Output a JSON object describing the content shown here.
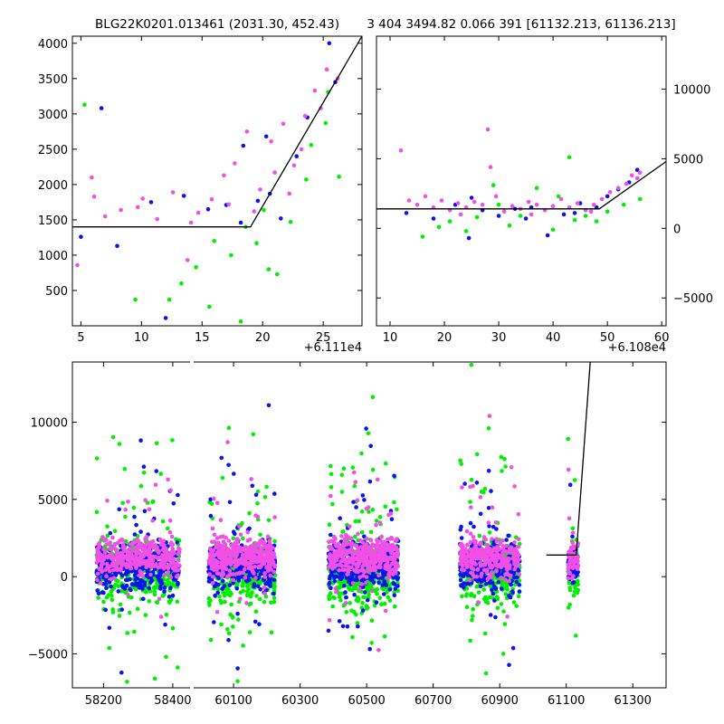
{
  "chart_data": [
    {
      "name": "top-left",
      "type": "scatter",
      "title": "BLG22K0201.013461 (2031.30, 452.43)",
      "x_offset_label": "+6.111e4",
      "xlim": [
        4.3,
        28.2
      ],
      "ylim": [
        0,
        4100
      ],
      "xticks": [
        5,
        10,
        15,
        20,
        25
      ],
      "xtick_labels": [
        "5",
        "10",
        "15",
        "20",
        "25"
      ],
      "yticks": [
        500,
        1000,
        1500,
        2000,
        2500,
        3000,
        3500,
        4000
      ],
      "ytick_labels": [
        "500",
        "1000",
        "1500",
        "2000",
        "2500",
        "3000",
        "3500",
        "4000"
      ],
      "y_axis_side": "left",
      "model_line": {
        "x": [
          4.3,
          19.0,
          28.2
        ],
        "y": [
          1400,
          1400,
          4100
        ]
      },
      "series": [
        {
          "name": "blue",
          "color": "#0a14f0",
          "x": [
            5,
            6.7,
            8,
            10.8,
            12,
            15.5,
            17,
            18.4,
            19.6,
            20.3,
            21.5,
            22.8,
            25.5,
            26,
            13.5,
            18.2,
            20.6,
            23.7
          ],
          "y": [
            1260,
            3080,
            1130,
            1750,
            110,
            1650,
            1710,
            2550,
            1770,
            2680,
            1520,
            2400,
            4000,
            3450,
            1840,
            1460,
            1870,
            2950
          ]
        },
        {
          "name": "green",
          "color": "#00f000",
          "x": [
            5.3,
            9.5,
            12.3,
            13.3,
            14.5,
            15.6,
            16,
            17.4,
            18.2,
            19.5,
            20.5,
            21.2,
            22.3,
            24,
            25.2,
            26.3,
            18.6,
            20.1,
            23.6,
            25.4
          ],
          "y": [
            3130,
            370,
            370,
            600,
            830,
            270,
            1200,
            1000,
            60,
            1170,
            800,
            730,
            1470,
            2560,
            2870,
            2110,
            1400,
            1640,
            2070,
            3310
          ]
        },
        {
          "name": "magenta",
          "color": "#f050e6",
          "x": [
            4.7,
            5.9,
            7,
            8.3,
            9.7,
            11.3,
            12.6,
            13.8,
            14.7,
            15.8,
            16.8,
            17.7,
            18.7,
            19.8,
            20.7,
            21.7,
            22.6,
            23.5,
            24.3,
            25.3,
            26.2,
            6.1,
            10.1,
            14.1,
            17.2,
            19.3,
            21,
            22.2,
            23.2,
            24.8
          ],
          "y": [
            860,
            2100,
            1550,
            1640,
            1680,
            1510,
            1890,
            930,
            1600,
            1790,
            2130,
            2300,
            2750,
            1930,
            2610,
            2860,
            2270,
            2970,
            3330,
            3630,
            3500,
            1830,
            1800,
            1460,
            1720,
            1620,
            2170,
            1870,
            2500,
            3080
          ]
        }
      ]
    },
    {
      "name": "top-right",
      "type": "scatter",
      "title": "3 404 3494.82 0.066 391 [61132.213, 61136.213]",
      "x_offset_label": "+6.108e4",
      "xlim": [
        7.5,
        60.8
      ],
      "ylim": [
        -7000,
        13800
      ],
      "xticks": [
        10,
        20,
        30,
        40,
        50,
        60
      ],
      "xtick_labels": [
        "10",
        "20",
        "30",
        "40",
        "50",
        "60"
      ],
      "yticks": [
        -5000,
        0,
        5000,
        10000
      ],
      "ytick_labels": [
        "−5000",
        "0",
        "5000",
        "10000"
      ],
      "y_axis_side": "right",
      "model_line": {
        "x": [
          7.5,
          48.5,
          60.8
        ],
        "y": [
          1400,
          1400,
          4800
        ]
      },
      "series": [
        {
          "name": "blue",
          "color": "#0a14f0",
          "x": [
            13,
            18,
            22,
            24.5,
            27,
            30,
            33,
            36,
            39,
            42,
            45,
            48,
            50,
            52,
            54,
            55.5,
            25,
            35,
            44
          ],
          "y": [
            1100,
            700,
            1700,
            -700,
            1300,
            900,
            1400,
            1500,
            -500,
            1000,
            1800,
            1500,
            2300,
            2800,
            3300,
            4200,
            2200,
            700,
            1100
          ]
        },
        {
          "name": "green",
          "color": "#00f000",
          "x": [
            16,
            19,
            21,
            24,
            26,
            29,
            32,
            34,
            37,
            40,
            43,
            44,
            46,
            48,
            50,
            53,
            56,
            30,
            41
          ],
          "y": [
            -600,
            100,
            500,
            -200,
            800,
            3100,
            200,
            900,
            2900,
            -100,
            5100,
            600,
            900,
            500,
            1200,
            1700,
            2100,
            1700,
            2300
          ]
        },
        {
          "name": "magenta",
          "color": "#f050e6",
          "x": [
            12,
            13.5,
            15,
            16.5,
            18,
            19.5,
            21,
            22.5,
            24,
            25.5,
            27,
            28,
            29.5,
            31,
            32.5,
            34,
            35.5,
            37,
            38.5,
            40,
            41.5,
            43,
            44.5,
            46,
            47.5,
            49,
            50.5,
            52,
            53.5,
            54.5,
            55.5,
            56,
            28.5,
            23,
            36,
            47
          ],
          "y": [
            5600,
            2000,
            1700,
            2300,
            1500,
            2000,
            1300,
            1800,
            1500,
            1900,
            1700,
            7100,
            2300,
            1200,
            1600,
            1400,
            1900,
            1700,
            1300,
            1600,
            2100,
            1500,
            1800,
            1300,
            1700,
            2100,
            2600,
            2900,
            3200,
            3800,
            3600,
            4000,
            4400,
            1000,
            1000,
            1200
          ]
        }
      ]
    },
    {
      "name": "bottom",
      "type": "scatter",
      "title": "",
      "broken_x_axis": true,
      "segments": [
        {
          "xlim": [
            58110,
            58450
          ],
          "xticks": [
            58200,
            58400
          ],
          "xtick_labels": [
            "58200",
            "58400"
          ],
          "seasons": [
            [
              58180,
              58420,
              370
            ]
          ]
        },
        {
          "xlim": [
            59980,
            61400
          ],
          "xticks": [
            60100,
            60300,
            60500,
            60700,
            60900,
            61100,
            61300
          ],
          "xtick_labels": [
            "60100",
            "60300",
            "60500",
            "60700",
            "60900",
            "61100",
            "61300"
          ],
          "seasons": [
            [
              60025,
              60225,
              360
            ],
            [
              60385,
              60595,
              420
            ],
            [
              60780,
              60960,
              300
            ],
            [
              61105,
              61136,
              60
            ]
          ]
        }
      ],
      "ylim": [
        -7200,
        13900
      ],
      "yticks": [
        -5000,
        0,
        5000,
        10000
      ],
      "ytick_labels": [
        "−5000",
        "0",
        "5000",
        "10000"
      ],
      "model_line": {
        "x": [
          61040,
          61130,
          61172
        ],
        "y": [
          1400,
          1400,
          13900
        ]
      },
      "series_colors": {
        "blue": "#0a14f0",
        "green": "#00f000",
        "magenta": "#f050e6"
      }
    }
  ]
}
